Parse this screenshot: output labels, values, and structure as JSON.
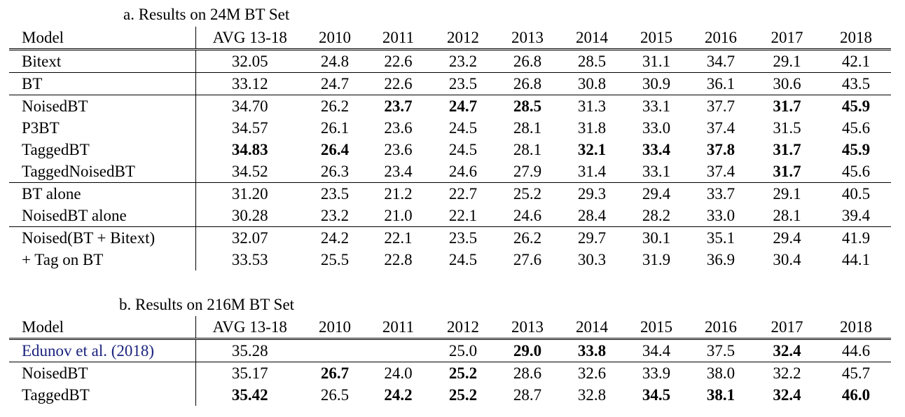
{
  "tables": [
    {
      "caption": "a. Results on 24M BT Set",
      "header": [
        "Model",
        "AVG 13-18",
        "2010",
        "2011",
        "2012",
        "2013",
        "2014",
        "2015",
        "2016",
        "2017",
        "2018"
      ],
      "rows": [
        {
          "model": "Bitext",
          "cells": [
            {
              "v": "32.05"
            },
            {
              "v": "24.8"
            },
            {
              "v": "22.6"
            },
            {
              "v": "23.2"
            },
            {
              "v": "26.8"
            },
            {
              "v": "28.5"
            },
            {
              "v": "31.1"
            },
            {
              "v": "34.7"
            },
            {
              "v": "29.1"
            },
            {
              "v": "42.1"
            }
          ],
          "sep": true
        },
        {
          "model": "BT",
          "cells": [
            {
              "v": "33.12"
            },
            {
              "v": "24.7"
            },
            {
              "v": "22.6"
            },
            {
              "v": "23.5"
            },
            {
              "v": "26.8"
            },
            {
              "v": "30.8"
            },
            {
              "v": "30.9"
            },
            {
              "v": "36.1"
            },
            {
              "v": "30.6"
            },
            {
              "v": "43.5"
            }
          ],
          "sep": true
        },
        {
          "model": "NoisedBT",
          "cells": [
            {
              "v": "34.70"
            },
            {
              "v": "26.2"
            },
            {
              "v": "23.7",
              "b": true
            },
            {
              "v": "24.7",
              "b": true
            },
            {
              "v": "28.5",
              "b": true
            },
            {
              "v": "31.3"
            },
            {
              "v": "33.1"
            },
            {
              "v": "37.7"
            },
            {
              "v": "31.7",
              "b": true
            },
            {
              "v": "45.9",
              "b": true
            }
          ]
        },
        {
          "model": "P3BT",
          "cells": [
            {
              "v": "34.57"
            },
            {
              "v": "26.1"
            },
            {
              "v": "23.6"
            },
            {
              "v": "24.5"
            },
            {
              "v": "28.1"
            },
            {
              "v": "31.8"
            },
            {
              "v": "33.0"
            },
            {
              "v": "37.4"
            },
            {
              "v": "31.5"
            },
            {
              "v": "45.6"
            }
          ]
        },
        {
          "model": "TaggedBT",
          "cells": [
            {
              "v": "34.83",
              "b": true
            },
            {
              "v": "26.4",
              "b": true
            },
            {
              "v": "23.6"
            },
            {
              "v": "24.5"
            },
            {
              "v": "28.1"
            },
            {
              "v": "32.1",
              "b": true
            },
            {
              "v": "33.4",
              "b": true
            },
            {
              "v": "37.8",
              "b": true
            },
            {
              "v": "31.7",
              "b": true
            },
            {
              "v": "45.9",
              "b": true
            }
          ]
        },
        {
          "model": "TaggedNoisedBT",
          "cells": [
            {
              "v": "34.52"
            },
            {
              "v": "26.3"
            },
            {
              "v": "23.4"
            },
            {
              "v": "24.6"
            },
            {
              "v": "27.9"
            },
            {
              "v": "31.4"
            },
            {
              "v": "33.1"
            },
            {
              "v": "37.4"
            },
            {
              "v": "31.7",
              "b": true
            },
            {
              "v": "45.6"
            }
          ],
          "sep": true
        },
        {
          "model": "BT alone",
          "cells": [
            {
              "v": "31.20"
            },
            {
              "v": "23.5"
            },
            {
              "v": "21.2"
            },
            {
              "v": "22.7"
            },
            {
              "v": "25.2"
            },
            {
              "v": "29.3"
            },
            {
              "v": "29.4"
            },
            {
              "v": "33.7"
            },
            {
              "v": "29.1"
            },
            {
              "v": "40.5"
            }
          ]
        },
        {
          "model": "NoisedBT alone",
          "cells": [
            {
              "v": "30.28"
            },
            {
              "v": "23.2"
            },
            {
              "v": "21.0"
            },
            {
              "v": "22.1"
            },
            {
              "v": "24.6"
            },
            {
              "v": "28.4"
            },
            {
              "v": "28.2"
            },
            {
              "v": "33.0"
            },
            {
              "v": "28.1"
            },
            {
              "v": "39.4"
            }
          ],
          "sep": true
        },
        {
          "model": "Noised(BT + Bitext)",
          "cells": [
            {
              "v": "32.07"
            },
            {
              "v": "24.2"
            },
            {
              "v": "22.1"
            },
            {
              "v": "23.5"
            },
            {
              "v": "26.2"
            },
            {
              "v": "29.7"
            },
            {
              "v": "30.1"
            },
            {
              "v": "35.1"
            },
            {
              "v": "29.4"
            },
            {
              "v": "41.9"
            }
          ]
        },
        {
          "model": "+ Tag on BT",
          "cells": [
            {
              "v": "33.53"
            },
            {
              "v": "25.5"
            },
            {
              "v": "22.8"
            },
            {
              "v": "24.5"
            },
            {
              "v": "27.6"
            },
            {
              "v": "30.3"
            },
            {
              "v": "31.9"
            },
            {
              "v": "36.9"
            },
            {
              "v": "30.4"
            },
            {
              "v": "44.1"
            }
          ]
        }
      ]
    },
    {
      "caption": "b. Results on 216M BT Set",
      "header": [
        "Model",
        "AVG 13-18",
        "2010",
        "2011",
        "2012",
        "2013",
        "2014",
        "2015",
        "2016",
        "2017",
        "2018"
      ],
      "rows": [
        {
          "model": "Edunov et al. (2018)",
          "cite": true,
          "cells": [
            {
              "v": "35.28"
            },
            {
              "v": ""
            },
            {
              "v": ""
            },
            {
              "v": "25.0"
            },
            {
              "v": "29.0",
              "b": true
            },
            {
              "v": "33.8",
              "b": true
            },
            {
              "v": "34.4"
            },
            {
              "v": "37.5"
            },
            {
              "v": "32.4",
              "b": true
            },
            {
              "v": "44.6"
            }
          ],
          "sep": true
        },
        {
          "model": "NoisedBT",
          "cells": [
            {
              "v": "35.17"
            },
            {
              "v": "26.7",
              "b": true
            },
            {
              "v": "24.0"
            },
            {
              "v": "25.2",
              "b": true
            },
            {
              "v": "28.6"
            },
            {
              "v": "32.6"
            },
            {
              "v": "33.9"
            },
            {
              "v": "38.0"
            },
            {
              "v": "32.2"
            },
            {
              "v": "45.7"
            }
          ]
        },
        {
          "model": "TaggedBT",
          "cells": [
            {
              "v": "35.42",
              "b": true
            },
            {
              "v": "26.5"
            },
            {
              "v": "24.2",
              "b": true
            },
            {
              "v": "25.2",
              "b": true
            },
            {
              "v": "28.7"
            },
            {
              "v": "32.8"
            },
            {
              "v": "34.5",
              "b": true
            },
            {
              "v": "38.1",
              "b": true
            },
            {
              "v": "32.4",
              "b": true
            },
            {
              "v": "46.0",
              "b": true
            }
          ]
        }
      ]
    }
  ]
}
